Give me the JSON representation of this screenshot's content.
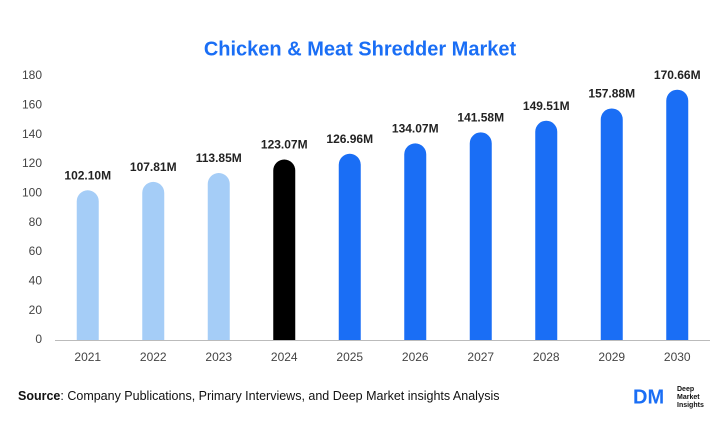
{
  "chart_data": {
    "type": "bar",
    "title": "Chicken & Meat Shredder Market",
    "categories": [
      "2021",
      "2022",
      "2023",
      "2024",
      "2025",
      "2026",
      "2027",
      "2028",
      "2029",
      "2030"
    ],
    "values": [
      102.1,
      107.81,
      113.85,
      123.07,
      126.96,
      134.07,
      141.58,
      149.51,
      157.88,
      170.66
    ],
    "value_labels": [
      "102.10M",
      "107.81M",
      "113.85M",
      "123.07M",
      "126.96M",
      "134.07M",
      "141.58M",
      "149.51M",
      "157.88M",
      "170.66M"
    ],
    "colors": [
      "#a5cdf7",
      "#a5cdf7",
      "#a5cdf7",
      "#000000",
      "#1a6ef5",
      "#1a6ef5",
      "#1a6ef5",
      "#1a6ef5",
      "#1a6ef5",
      "#1a6ef5"
    ],
    "ylim": [
      0,
      180
    ],
    "yticks": [
      0,
      20,
      40,
      60,
      80,
      100,
      120,
      140,
      160,
      180
    ],
    "grid": false
  },
  "source": {
    "label": "Source",
    "text": ": Company Publications, Primary Interviews, and Deep Market insights Analysis"
  },
  "logo": {
    "mark": "DM",
    "lines": [
      "Deep",
      "Market",
      "Insights"
    ]
  }
}
